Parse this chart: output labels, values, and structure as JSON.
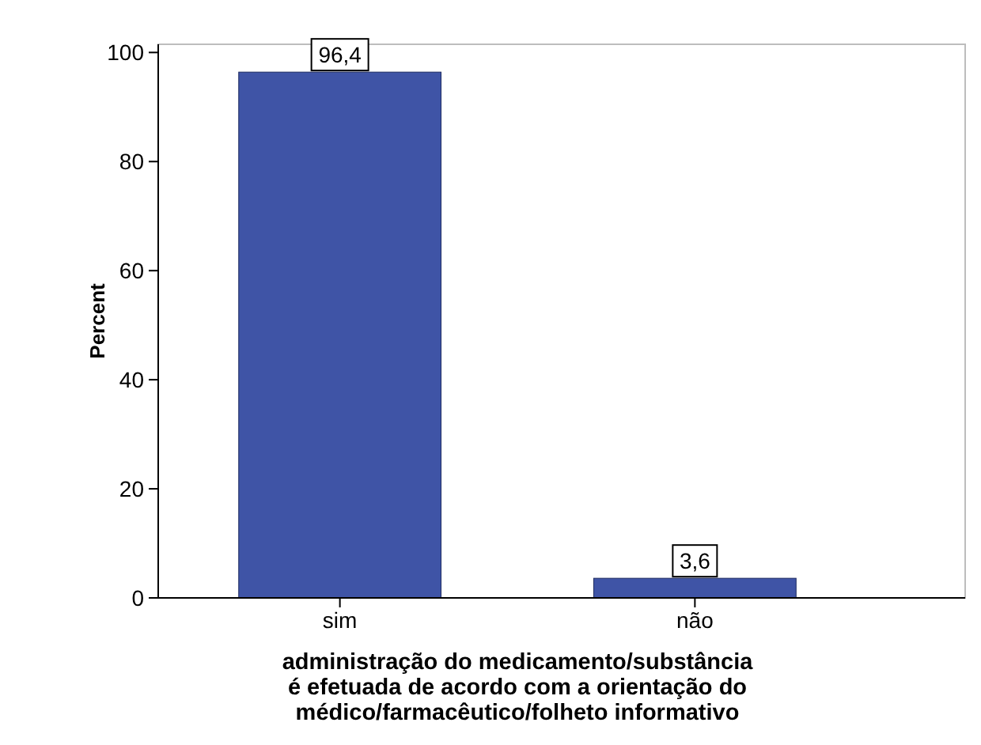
{
  "chart_data": {
    "type": "bar",
    "categories": [
      "sim",
      "não"
    ],
    "values": [
      96.4,
      3.6
    ],
    "value_labels": [
      "96,4",
      "3,6"
    ],
    "color": "#3f54a6",
    "ylabel": "Percent",
    "xlabel": "administração do medicamento/substância\né efetuada de acordo com a orientação do\nmédico/farmacêutico/folheto informativo",
    "ylim": [
      0,
      101.5
    ],
    "yticks": [
      0,
      20,
      40,
      60,
      80,
      100
    ],
    "grid": false
  }
}
